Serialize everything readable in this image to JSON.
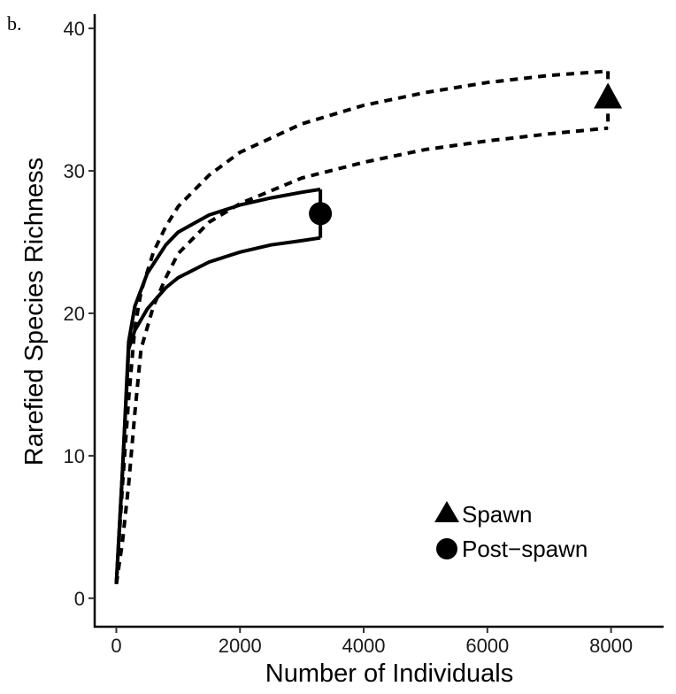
{
  "chart_data": {
    "type": "line",
    "panel_label": "b.",
    "title": "",
    "xlabel": "Number of Individuals",
    "ylabel": "Rarefied Species Richness",
    "xlim": [
      -350,
      8850
    ],
    "ylim": [
      -2,
      41
    ],
    "x_ticks": [
      0,
      2000,
      4000,
      6000,
      8000
    ],
    "y_ticks": [
      0,
      10,
      20,
      30,
      40
    ],
    "grid": false,
    "legend_position": "bottom-right",
    "legend": [
      {
        "label": "Spawn",
        "marker": "triangle"
      },
      {
        "label": "Post−spawn",
        "marker": "circle"
      }
    ],
    "series": [
      {
        "name": "Spawn",
        "line_style": "dashed",
        "marker": "triangle",
        "observed_point": {
          "x": 7950,
          "y": 35
        },
        "interval_upper": [
          [
            0,
            1
          ],
          [
            100,
            8
          ],
          [
            200,
            14
          ],
          [
            300,
            19
          ],
          [
            400,
            21.5
          ],
          [
            600,
            24.3
          ],
          [
            800,
            26.1
          ],
          [
            1000,
            27.5
          ],
          [
            1500,
            29.7
          ],
          [
            2000,
            31.3
          ],
          [
            3000,
            33.3
          ],
          [
            4000,
            34.6
          ],
          [
            5000,
            35.5
          ],
          [
            6000,
            36.2
          ],
          [
            7000,
            36.7
          ],
          [
            7950,
            37
          ]
        ],
        "interval_lower": [
          [
            0,
            1
          ],
          [
            100,
            4
          ],
          [
            200,
            8
          ],
          [
            300,
            13
          ],
          [
            400,
            17.5
          ],
          [
            600,
            20.5
          ],
          [
            800,
            22.5
          ],
          [
            1000,
            24.2
          ],
          [
            1500,
            26.4
          ],
          [
            2000,
            27.7
          ],
          [
            3000,
            29.5
          ],
          [
            4000,
            30.6
          ],
          [
            5000,
            31.5
          ],
          [
            6000,
            32.1
          ],
          [
            7000,
            32.6
          ],
          [
            7950,
            33
          ]
        ]
      },
      {
        "name": "Post−spawn",
        "line_style": "solid",
        "marker": "circle",
        "observed_point": {
          "x": 3300,
          "y": 27
        },
        "interval_upper": [
          [
            0,
            1
          ],
          [
            100,
            9
          ],
          [
            200,
            18
          ],
          [
            300,
            20.5
          ],
          [
            500,
            22.8
          ],
          [
            800,
            24.8
          ],
          [
            1000,
            25.7
          ],
          [
            1500,
            26.9
          ],
          [
            2000,
            27.6
          ],
          [
            2500,
            28.1
          ],
          [
            3000,
            28.5
          ],
          [
            3300,
            28.7
          ]
        ],
        "interval_lower": [
          [
            0,
            1
          ],
          [
            100,
            9
          ],
          [
            200,
            17.5
          ],
          [
            300,
            18.8
          ],
          [
            500,
            20.3
          ],
          [
            800,
            21.8
          ],
          [
            1000,
            22.5
          ],
          [
            1500,
            23.6
          ],
          [
            2000,
            24.3
          ],
          [
            2500,
            24.8
          ],
          [
            3000,
            25.1
          ],
          [
            3300,
            25.3
          ]
        ]
      }
    ]
  }
}
